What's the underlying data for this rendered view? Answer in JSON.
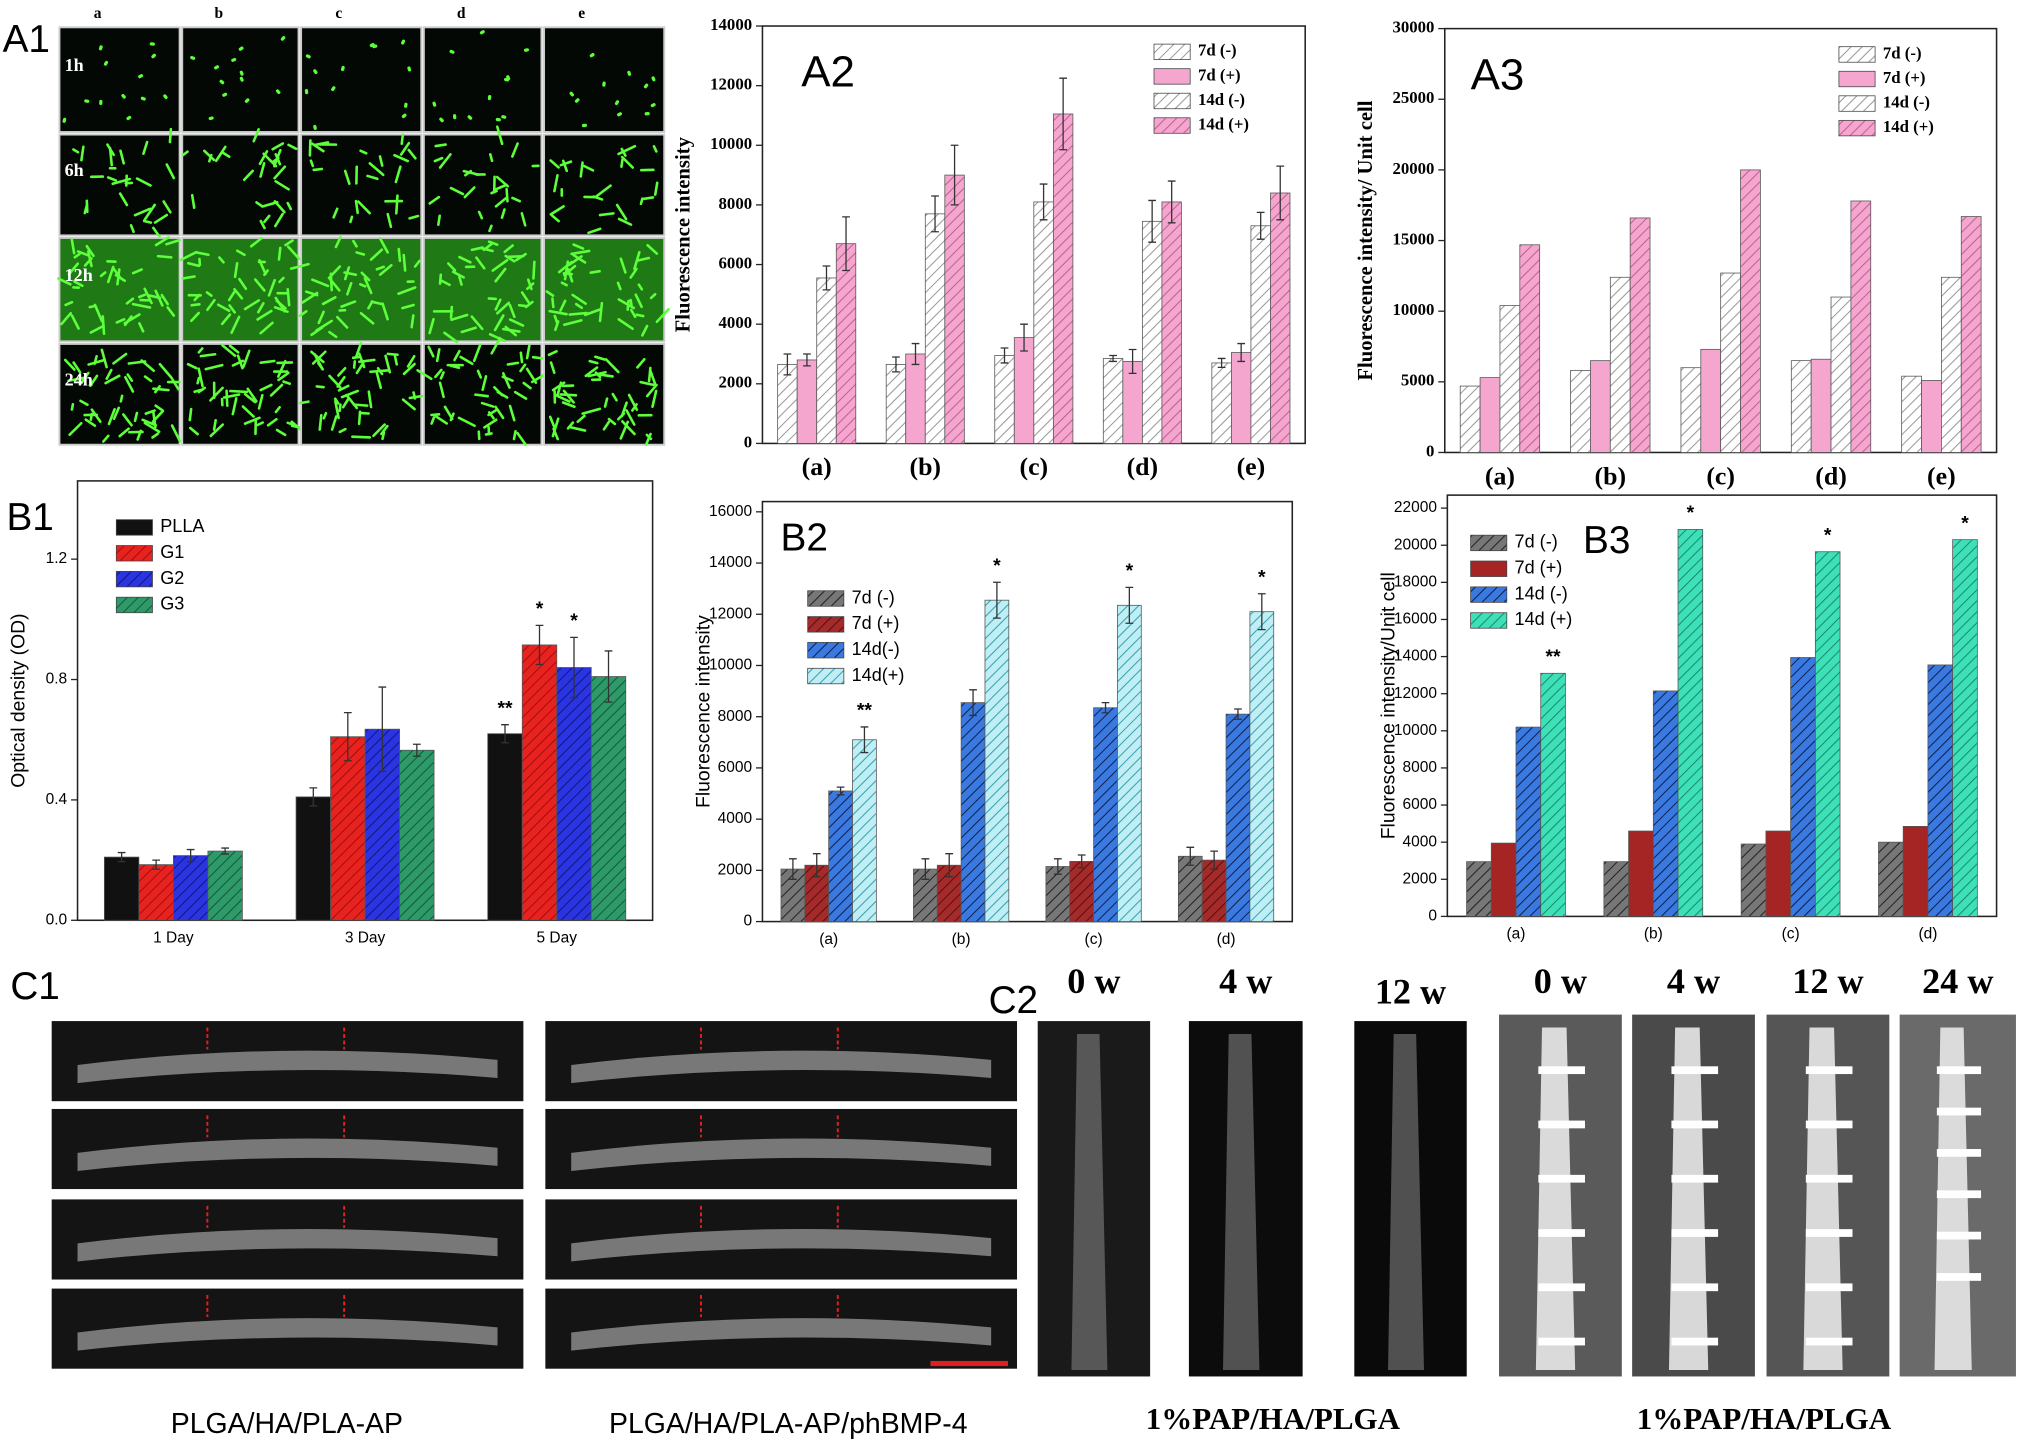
{
  "chart_data": [
    {
      "type": "bar",
      "panel": "A2",
      "ylabel": "Fluorescence intensity",
      "categories": [
        "(a)",
        "(b)",
        "(c)",
        "(d)",
        "(e)"
      ],
      "ylim": [
        0,
        14000
      ],
      "yticks": [
        0,
        2000,
        4000,
        6000,
        8000,
        10000,
        12000,
        14000
      ],
      "legend": "upper right",
      "series": [
        {
          "name": "7d  (-)",
          "color": "#ffffff",
          "hatch": "#999999",
          "values": [
            2650,
            2650,
            2950,
            2850,
            2700
          ],
          "errors": [
            350,
            250,
            250,
            100,
            150
          ]
        },
        {
          "name": "7d  (+)",
          "color": "#f4a6cf",
          "hatch": null,
          "values": [
            2800,
            3000,
            3550,
            2750,
            3050
          ],
          "errors": [
            200,
            350,
            450,
            400,
            300
          ]
        },
        {
          "name": "14d (-)",
          "color": "#ffffff",
          "hatch": "#999999",
          "values": [
            5550,
            7700,
            8100,
            7450,
            7300
          ],
          "errors": [
            400,
            600,
            600,
            700,
            450
          ]
        },
        {
          "name": "14d (+)",
          "color": "#f4a6cf",
          "hatch": "#c06090",
          "values": [
            6700,
            9000,
            11050,
            8100,
            8400
          ],
          "errors": [
            900,
            1000,
            1200,
            700,
            900
          ]
        }
      ]
    },
    {
      "type": "bar",
      "panel": "A3",
      "ylabel": "Fluorescence intensity/ Unit cell",
      "categories": [
        "(a)",
        "(b)",
        "(c)",
        "(d)",
        "(e)"
      ],
      "ylim": [
        0,
        30000
      ],
      "yticks": [
        0,
        5000,
        10000,
        15000,
        20000,
        25000,
        30000
      ],
      "legend": "upper right",
      "series": [
        {
          "name": "7d  (-)",
          "color": "#ffffff",
          "hatch": "#999999",
          "values": [
            4700,
            5800,
            6000,
            6500,
            5400
          ]
        },
        {
          "name": "7d  (+)",
          "color": "#f4a6cf",
          "hatch": null,
          "values": [
            5300,
            6500,
            7300,
            6600,
            5100
          ]
        },
        {
          "name": "14d (-)",
          "color": "#ffffff",
          "hatch": "#999999",
          "values": [
            10400,
            12400,
            12700,
            11000,
            12400
          ]
        },
        {
          "name": "14d (+)",
          "color": "#f4a6cf",
          "hatch": "#c06090",
          "values": [
            14700,
            16600,
            20000,
            17800,
            16700
          ]
        }
      ]
    },
    {
      "type": "bar",
      "panel": "B1",
      "ylabel": "Optical density (OD)",
      "categories": [
        "1 Day",
        "3 Day",
        "5 Day"
      ],
      "ylim": [
        0,
        1.46
      ],
      "yticks": [
        {
          "value": 0,
          "label": "0.0"
        },
        0.4,
        0.8,
        1.2
      ],
      "legend": "upper left",
      "series": [
        {
          "name": "PLLA",
          "color": "#111111",
          "hatch": null,
          "values": [
            0.21,
            0.41,
            0.62
          ],
          "errors": [
            0.015,
            0.03,
            0.03
          ],
          "significance": [
            null,
            null,
            "**"
          ]
        },
        {
          "name": "G1",
          "color": "#e8221e",
          "hatch": "#a01010",
          "values": [
            0.185,
            0.61,
            0.915
          ],
          "errors": [
            0.015,
            0.08,
            0.065
          ],
          "significance": [
            null,
            null,
            "*"
          ]
        },
        {
          "name": "G2",
          "color": "#2a34e0",
          "hatch": "#101880",
          "values": [
            0.215,
            0.635,
            0.84
          ],
          "errors": [
            0.02,
            0.14,
            0.1
          ],
          "significance": [
            null,
            null,
            "*"
          ]
        },
        {
          "name": "G3",
          "color": "#2e9a6a",
          "hatch": "#125a3a",
          "values": [
            0.23,
            0.565,
            0.81
          ],
          "errors": [
            0.01,
            0.02,
            0.085
          ]
        }
      ]
    },
    {
      "type": "bar",
      "panel": "B2",
      "ylabel": "Fluorescence intensity",
      "categories": [
        "(a)",
        "(b)",
        "(c)",
        "(d)"
      ],
      "ylim": [
        0,
        16400
      ],
      "yticks": [
        0,
        2000,
        4000,
        6000,
        8000,
        10000,
        12000,
        14000,
        16000
      ],
      "legend": "upper left",
      "series": [
        {
          "name": "7d (-)",
          "color": "#777777",
          "hatch": "#222222",
          "values": [
            2050,
            2050,
            2150,
            2550
          ],
          "errors": [
            400,
            400,
            300,
            350
          ]
        },
        {
          "name": "7d (+)",
          "color": "#a52a2a",
          "hatch": "#5a0f0f",
          "values": [
            2200,
            2200,
            2350,
            2400
          ],
          "errors": [
            450,
            450,
            250,
            350
          ]
        },
        {
          "name": "14d(-)",
          "color": "#3a7ae0",
          "hatch": "#102050",
          "values": [
            5100,
            8550,
            8350,
            8100
          ],
          "errors": [
            150,
            500,
            200,
            200
          ]
        },
        {
          "name": "14d(+)",
          "color": "#bfeff5",
          "hatch": "#3aa0b0",
          "values": [
            7100,
            12550,
            12350,
            12100
          ],
          "errors": [
            500,
            700,
            700,
            700
          ],
          "significance": [
            "**",
            "*",
            "*",
            "*"
          ]
        }
      ]
    },
    {
      "type": "bar",
      "panel": "B3",
      "ylabel": "Fluorescence intensity/Unit cell",
      "categories": [
        "(a)",
        "(b)",
        "(c)",
        "(d)"
      ],
      "ylim": [
        0,
        22700
      ],
      "yticks": [
        0,
        2000,
        4000,
        6000,
        8000,
        10000,
        12000,
        14000,
        16000,
        18000,
        20000,
        22000
      ],
      "legend": "upper left",
      "series": [
        {
          "name": "7d (-)",
          "color": "#777777",
          "hatch": "#222222",
          "values": [
            2950,
            2950,
            3900,
            4000
          ]
        },
        {
          "name": "7d (+)",
          "color": "#a52424",
          "hatch": null,
          "values": [
            3950,
            4600,
            4600,
            4850
          ]
        },
        {
          "name": "14d (-)",
          "color": "#3a7ae0",
          "hatch": "#102050",
          "values": [
            10200,
            12150,
            13950,
            13550
          ]
        },
        {
          "name": "14d (+)",
          "color": "#3ee0b8",
          "hatch": "#1a8a70",
          "values": [
            13100,
            20850,
            19650,
            20300
          ],
          "significance": [
            "**",
            "*",
            "*",
            "*"
          ]
        }
      ]
    }
  ],
  "A1": {
    "panel": "A1",
    "columns": [
      "a",
      "b",
      "c",
      "d",
      "e"
    ],
    "rows": [
      "1h",
      "6h",
      "12h",
      "24h"
    ]
  },
  "C1": {
    "panel": "C1",
    "captions": [
      "PLGA/HA/PLA-AP",
      "PLGA/HA/PLA-AP/phBMP-4"
    ]
  },
  "C2": {
    "panel": "C2",
    "times": [
      "0 w",
      "4 w",
      "12 w",
      "0 w",
      "4 w",
      "12 w",
      "24 w"
    ],
    "captions": [
      "1%PAP/HA/PLGA",
      "1%PAP/HA/PLGA"
    ]
  }
}
